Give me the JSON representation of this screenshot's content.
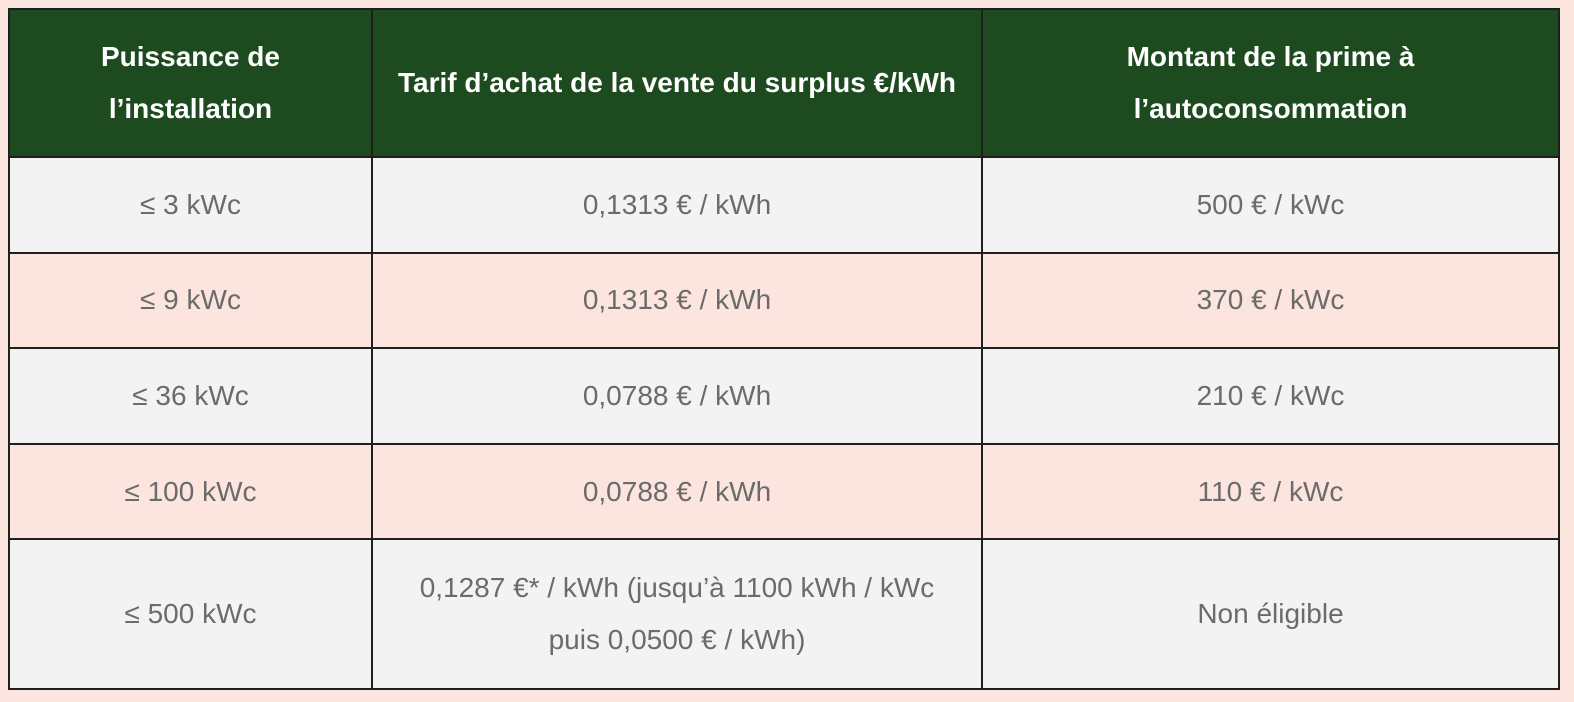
{
  "table": {
    "header": [
      "Puissance de l’installation",
      "Tarif d’achat de la vente du surplus €/kWh",
      "Montant de la prime à l’autoconsommation"
    ],
    "rows": [
      [
        "≤ 3 kWc",
        "0,1313 € / kWh",
        "500 € / kWc"
      ],
      [
        "≤ 9 kWc",
        "0,1313 € / kWh",
        "370 € / kWc"
      ],
      [
        "≤ 36 kWc",
        "0,0788 € / kWh",
        "210 € / kWc"
      ],
      [
        "≤ 100 kWc",
        "0,0788 € / kWh",
        "110 € / kWc"
      ],
      [
        "≤ 500 kWc",
        "0,1287 €* / kWh (jusqu’à 1100 kWh / kWc puis 0,0500 € / kWh)",
        "Non éligible"
      ]
    ]
  }
}
